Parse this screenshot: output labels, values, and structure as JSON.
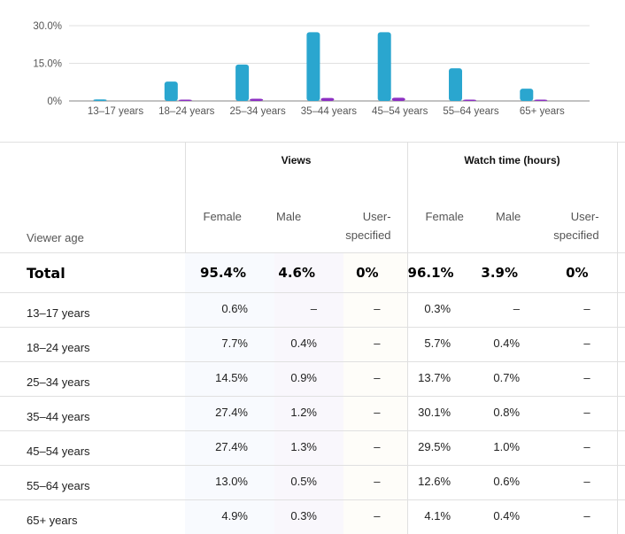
{
  "colors": {
    "female": "#2aa6cf",
    "male": "#8c2fc2",
    "user_specified": "#e89b2a"
  },
  "chart_data": {
    "type": "bar",
    "categories": [
      "13–17 years",
      "18–24 years",
      "25–34 years",
      "35–44 years",
      "45–54 years",
      "55–64 years",
      "65+ years"
    ],
    "series": [
      {
        "name": "Female",
        "values": [
          0.6,
          7.7,
          14.5,
          27.4,
          27.4,
          13.0,
          4.9
        ]
      },
      {
        "name": "Male",
        "values": [
          0,
          0.4,
          0.9,
          1.2,
          1.3,
          0.5,
          0.3
        ]
      }
    ],
    "y_ticks": [
      "30.0%",
      "15.0%",
      "0%"
    ],
    "ylim": [
      0,
      30
    ],
    "grid": true
  },
  "table": {
    "groups": [
      {
        "label": "Views"
      },
      {
        "label": "Watch time (hours)"
      }
    ],
    "viewer_age_label": "Viewer age",
    "sub_headers": [
      "Female",
      "Male",
      "User-specified",
      "Female",
      "Male",
      "User-specified"
    ],
    "total": {
      "label": "Total",
      "values": [
        "95.4%",
        "4.6%",
        "0%",
        "96.1%",
        "3.9%",
        "0%"
      ]
    },
    "rows": [
      {
        "label": "13–17 years",
        "values": [
          "0.6%",
          "–",
          "–",
          "0.3%",
          "–",
          "–"
        ]
      },
      {
        "label": "18–24 years",
        "values": [
          "7.7%",
          "0.4%",
          "–",
          "5.7%",
          "0.4%",
          "–"
        ]
      },
      {
        "label": "25–34 years",
        "values": [
          "14.5%",
          "0.9%",
          "–",
          "13.7%",
          "0.7%",
          "–"
        ]
      },
      {
        "label": "35–44 years",
        "values": [
          "27.4%",
          "1.2%",
          "–",
          "30.1%",
          "0.8%",
          "–"
        ]
      },
      {
        "label": "45–54 years",
        "values": [
          "27.4%",
          "1.3%",
          "–",
          "29.5%",
          "1.0%",
          "–"
        ]
      },
      {
        "label": "55–64 years",
        "values": [
          "13.0%",
          "0.5%",
          "–",
          "12.6%",
          "0.6%",
          "–"
        ]
      },
      {
        "label": "65+ years",
        "values": [
          "4.9%",
          "0.3%",
          "–",
          "4.1%",
          "0.4%",
          "–"
        ]
      }
    ]
  }
}
